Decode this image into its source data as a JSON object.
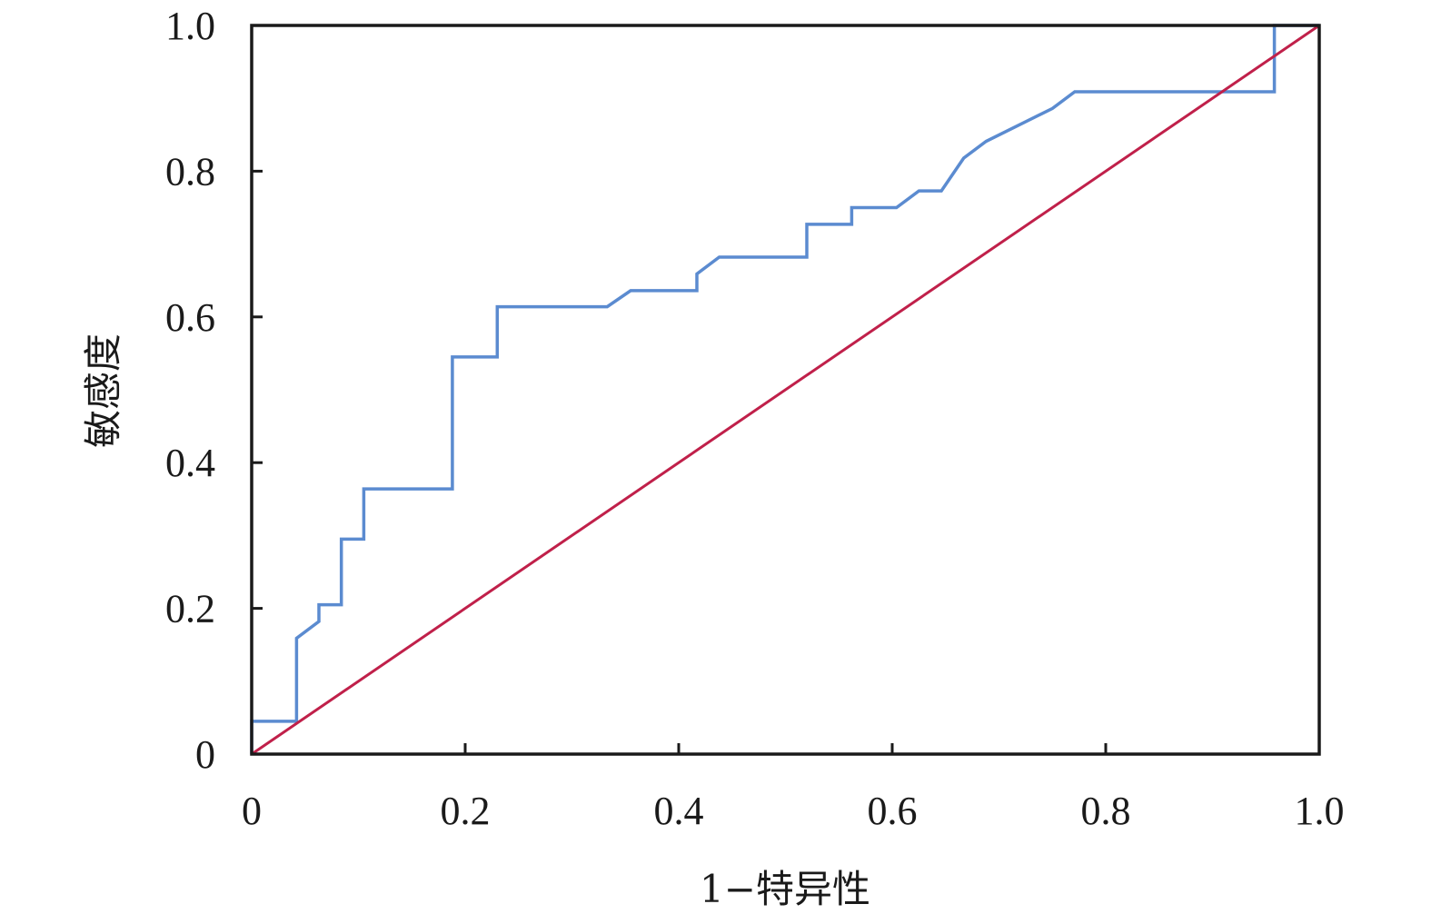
{
  "chart_data": {
    "type": "line",
    "title": "",
    "xlabel": "1−特异性",
    "ylabel": "敏感度",
    "xlim": [
      0,
      1
    ],
    "ylim": [
      0,
      1
    ],
    "grid": false,
    "legend": "none",
    "x_ticks": [
      {
        "value": 0,
        "label": "0"
      },
      {
        "value": 0.2,
        "label": "0.2"
      },
      {
        "value": 0.4,
        "label": "0.4"
      },
      {
        "value": 0.6,
        "label": "0.6"
      },
      {
        "value": 0.8,
        "label": "0.8"
      },
      {
        "value": 1.0,
        "label": "1.0"
      }
    ],
    "y_ticks": [
      {
        "value": 0,
        "label": "0"
      },
      {
        "value": 0.2,
        "label": "0.2"
      },
      {
        "value": 0.4,
        "label": "0.4"
      },
      {
        "value": 0.6,
        "label": "0.6"
      },
      {
        "value": 0.8,
        "label": "0.8"
      },
      {
        "value": 1.0,
        "label": "1.0"
      }
    ],
    "series": [
      {
        "color": "#5b8bd0",
        "x": [
          0.0,
          0.0,
          0.042,
          0.042,
          0.063,
          0.063,
          0.084,
          0.084,
          0.105,
          0.105,
          0.188,
          0.188,
          0.23,
          0.23,
          0.333,
          0.355,
          0.417,
          0.417,
          0.438,
          0.52,
          0.52,
          0.562,
          0.562,
          0.604,
          0.625,
          0.646,
          0.667,
          0.688,
          0.75,
          0.771,
          0.958,
          0.958,
          1.0
        ],
        "y": [
          0.0,
          0.045,
          0.045,
          0.159,
          0.182,
          0.205,
          0.205,
          0.295,
          0.295,
          0.364,
          0.364,
          0.545,
          0.545,
          0.614,
          0.614,
          0.636,
          0.636,
          0.659,
          0.682,
          0.682,
          0.727,
          0.727,
          0.75,
          0.75,
          0.773,
          0.773,
          0.818,
          0.841,
          0.886,
          0.909,
          0.909,
          1.0,
          1.0
        ]
      },
      {
        "color": "#c0204a",
        "x": [
          0,
          1
        ],
        "y": [
          0,
          1
        ]
      }
    ]
  }
}
